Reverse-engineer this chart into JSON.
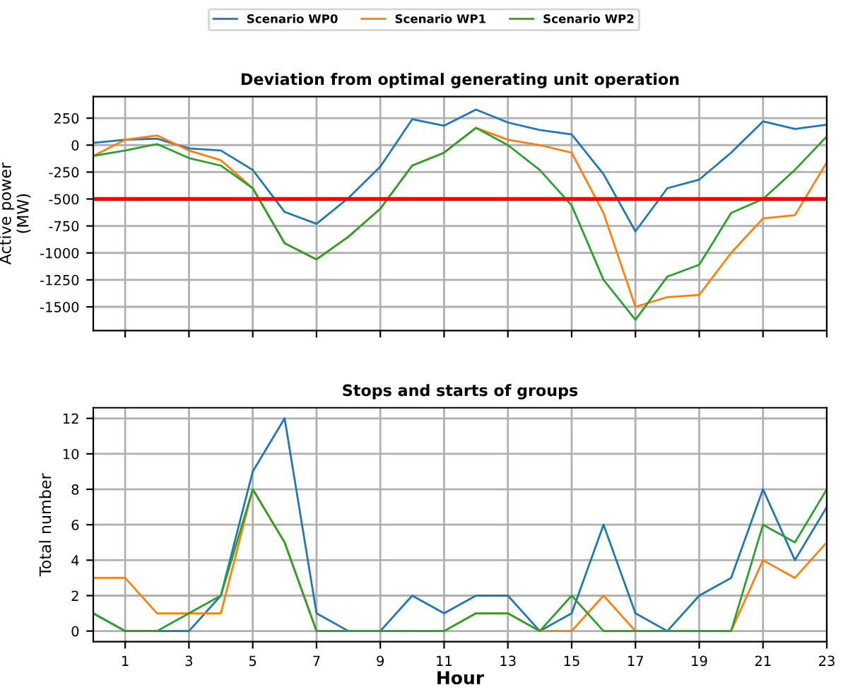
{
  "chart_data": [
    {
      "type": "line",
      "title": "Deviation from optimal generating unit operation",
      "ylabel": "Active power\n(MW)",
      "x": [
        0,
        1,
        2,
        3,
        4,
        5,
        6,
        7,
        8,
        9,
        10,
        11,
        12,
        13,
        14,
        15,
        16,
        17,
        18,
        19,
        20,
        21,
        22,
        23
      ],
      "series": [
        {
          "name": "Scenario WP0",
          "color": "#1f77b4",
          "values": [
            20,
            50,
            60,
            -30,
            -50,
            -230,
            -620,
            -730,
            -490,
            -200,
            240,
            180,
            330,
            210,
            140,
            100,
            -270,
            -800,
            -400,
            -320,
            -70,
            220,
            150,
            190
          ]
        },
        {
          "name": "Scenario WP1",
          "color": "#ff7f0e",
          "values": [
            -100,
            50,
            90,
            -50,
            -140,
            -400,
            -910,
            -1060,
            -850,
            -590,
            -190,
            -70,
            160,
            50,
            0,
            -70,
            -630,
            -1500,
            -1410,
            -1390,
            -1000,
            -680,
            -650,
            -160
          ]
        },
        {
          "name": "Scenario WP2",
          "color": "#2ca02c",
          "values": [
            -100,
            -50,
            10,
            -120,
            -190,
            -400,
            -910,
            -1060,
            -850,
            -590,
            -190,
            -70,
            160,
            0,
            -230,
            -560,
            -1250,
            -1620,
            -1220,
            -1110,
            -630,
            -500,
            -230,
            80
          ]
        }
      ],
      "xlim": [
        0,
        23
      ],
      "xticks": [
        1,
        3,
        5,
        7,
        9,
        11,
        13,
        15,
        17,
        19,
        21,
        23
      ],
      "ylim": [
        -1720,
        450
      ],
      "yticks": [
        -1500,
        -1250,
        -1000,
        -750,
        -500,
        -250,
        0,
        250
      ],
      "ref_lines": [
        {
          "axis": "y",
          "value": -500,
          "color": "#ff0000"
        }
      ],
      "grid": true,
      "legend": "top",
      "tick_labels": "y"
    },
    {
      "type": "line",
      "title": "Stops and starts of groups",
      "xlabel": "Hour",
      "ylabel": "Total number",
      "x": [
        0,
        1,
        2,
        3,
        4,
        5,
        6,
        7,
        8,
        9,
        10,
        11,
        12,
        13,
        14,
        15,
        16,
        17,
        18,
        19,
        20,
        21,
        22,
        23
      ],
      "series": [
        {
          "color": "#1f77b4",
          "values": [
            1,
            0,
            0,
            0,
            2,
            9,
            12,
            1,
            0,
            0,
            2,
            1,
            2,
            2,
            0,
            1,
            6,
            1,
            0,
            2,
            3,
            8,
            4,
            7
          ]
        },
        {
          "color": "#ff7f0e",
          "values": [
            3,
            3,
            1,
            1,
            1,
            8,
            5,
            0,
            0,
            0,
            0,
            0,
            1,
            1,
            0,
            0,
            2,
            0,
            0,
            0,
            0,
            4,
            3,
            5
          ]
        },
        {
          "color": "#2ca02c",
          "values": [
            1,
            0,
            0,
            1,
            2,
            8,
            5,
            0,
            0,
            0,
            0,
            0,
            1,
            1,
            0,
            2,
            0,
            0,
            0,
            0,
            0,
            6,
            5,
            8
          ]
        }
      ],
      "xlim": [
        0,
        23
      ],
      "xticks": [
        1,
        3,
        5,
        7,
        9,
        11,
        13,
        15,
        17,
        19,
        21,
        23
      ],
      "ylim": [
        -0.6,
        12.6
      ],
      "yticks": [
        0,
        2,
        4,
        6,
        8,
        10,
        12
      ],
      "grid": true
    }
  ]
}
